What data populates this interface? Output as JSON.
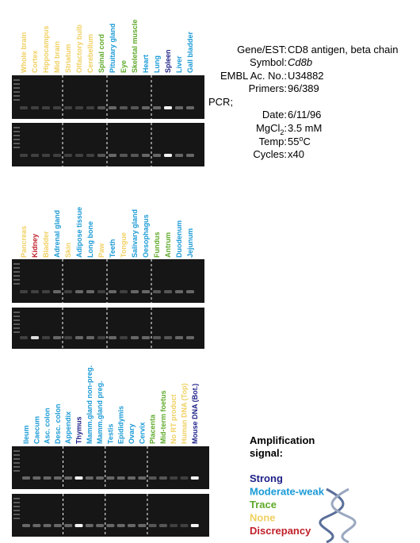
{
  "groups": [
    {
      "lanes": [
        [
          {
            "label": "Whole brain",
            "color": "#f0d060"
          },
          {
            "label": "Cortex",
            "color": "#f0d060"
          },
          {
            "label": "Hippocampus",
            "color": "#f0d060"
          },
          {
            "label": "Mid brain",
            "color": "#f0d060"
          }
        ],
        [
          {
            "label": "Striatum",
            "color": "#f0d060"
          },
          {
            "label": "Olfactory bulb",
            "color": "#f0d060"
          },
          {
            "label": "Cerebellum",
            "color": "#f0d060"
          },
          {
            "label": "Spinal cord",
            "color": "#5faa2a"
          }
        ],
        [
          {
            "label": "Pituitary gland",
            "color": "#1a9ad6"
          },
          {
            "label": "Eye",
            "color": "#5faa2a"
          },
          {
            "label": "Skeletal muscle",
            "color": "#5faa2a"
          },
          {
            "label": "Heart",
            "color": "#1a9ad6"
          }
        ],
        [
          {
            "label": "Lung",
            "color": "#1a9ad6"
          },
          {
            "label": "Spleen",
            "color": "#1c1f86"
          },
          {
            "label": "Liver",
            "color": "#1a9ad6"
          },
          {
            "label": "Gall bladder",
            "color": "#1a9ad6"
          }
        ]
      ]
    },
    {
      "lanes": [
        [
          {
            "label": "Pancreas",
            "color": "#f0d060"
          },
          {
            "label": "Kidney",
            "color": "#c0202a"
          },
          {
            "label": "Bladder",
            "color": "#f0d060"
          },
          {
            "label": "Adrenal gland",
            "color": "#1a9ad6"
          }
        ],
        [
          {
            "label": "Skin",
            "color": "#f0d060"
          },
          {
            "label": "Adipose tissue",
            "color": "#1a9ad6"
          },
          {
            "label": "Long bone",
            "color": "#1a9ad6"
          },
          {
            "label": "Paw",
            "color": "#f0d060"
          }
        ],
        [
          {
            "label": "Teeth",
            "color": "#1a9ad6"
          },
          {
            "label": "Tongue",
            "color": "#f0d060"
          },
          {
            "label": "Salivary gland",
            "color": "#1a9ad6"
          },
          {
            "label": "Oesophagus",
            "color": "#1a9ad6"
          }
        ],
        [
          {
            "label": "Fundus",
            "color": "#5faa2a"
          },
          {
            "label": "Antrum",
            "color": "#5faa2a"
          },
          {
            "label": "Duodenum",
            "color": "#1a9ad6"
          },
          {
            "label": "Jejunum",
            "color": "#1a9ad6"
          }
        ]
      ]
    },
    {
      "lanes": [
        [
          {
            "label": "Ileum",
            "color": "#1a9ad6"
          },
          {
            "label": "Caecum",
            "color": "#1a9ad6"
          },
          {
            "label": "Asc. colon",
            "color": "#1a9ad6"
          },
          {
            "label": "Desc. colon",
            "color": "#1a9ad6"
          }
        ],
        [
          {
            "label": "Appendix",
            "color": "#1a9ad6"
          },
          {
            "label": "Thymus",
            "color": "#1c1f86"
          },
          {
            "label": "Mamm.gland non-preg.",
            "color": "#1a9ad6"
          },
          {
            "label": "Mamm.gland preg.",
            "color": "#1a9ad6"
          }
        ],
        [
          {
            "label": "Testis",
            "color": "#1a9ad6"
          },
          {
            "label": "Epididymis",
            "color": "#1a9ad6"
          },
          {
            "label": "Ovary",
            "color": "#1a9ad6"
          },
          {
            "label": "Cervix",
            "color": "#1a9ad6"
          }
        ],
        [
          {
            "label": "Placenta",
            "color": "#5faa2a"
          },
          {
            "label": "Mid-term foetus",
            "color": "#5faa2a"
          },
          {
            "label": "No RT product",
            "color": "#f0d060"
          },
          {
            "label": "Human DNA (Top)",
            "color": "#f0d060"
          },
          {
            "label": "Mouse DNA (Bot.)",
            "color": "#1c1f86"
          }
        ]
      ]
    }
  ],
  "info": {
    "rows": [
      {
        "key": "Gene/EST:",
        "value": "CD8 antigen, beta chain"
      },
      {
        "key": "Symbol:",
        "value": "Cd8b",
        "italic": true
      },
      {
        "key": "EMBL Ac. No.:",
        "value": "U34882"
      },
      {
        "key": "Primers:",
        "value": "96/389"
      },
      {
        "key": "Date:",
        "value": "6/11/96"
      },
      {
        "key": "MgCl",
        "key_sub": "2",
        "key_tail": ":",
        "value": "3.5 mM"
      },
      {
        "key": "Temp:",
        "value": "55",
        "value_sup": "o",
        "value_tail": "C"
      },
      {
        "key": "Cycles:",
        "value": "x40"
      }
    ],
    "pcr_label": "PCR;"
  },
  "legend": {
    "title_lines": [
      "Amplification",
      "signal:"
    ],
    "items": [
      {
        "name": "Strong",
        "color": "#1c1f86"
      },
      {
        "name": "Moderate-weak",
        "color": "#1a9ad6"
      },
      {
        "name": "Trace",
        "color": "#5faa2a"
      },
      {
        "name": "None",
        "color": "#f0d060"
      },
      {
        "name": "Discrepancy",
        "color": "#c0202a"
      }
    ]
  }
}
